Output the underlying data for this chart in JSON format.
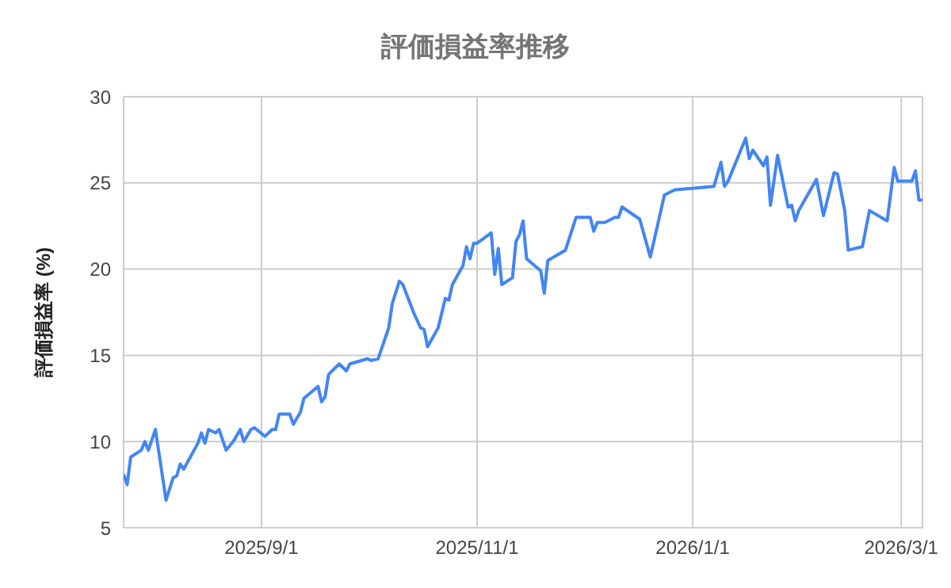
{
  "chart_data": {
    "type": "line",
    "title": "評価損益率推移",
    "ylabel": "評価損益率 (%)",
    "x": [
      "2025-07-24",
      "2025-07-25",
      "2025-07-26",
      "2025-07-29",
      "2025-07-30",
      "2025-07-31",
      "2025-08-02",
      "2025-08-05",
      "2025-08-07",
      "2025-08-08",
      "2025-08-09",
      "2025-08-10",
      "2025-08-14",
      "2025-08-15",
      "2025-08-16",
      "2025-08-17",
      "2025-08-19",
      "2025-08-20",
      "2025-08-22",
      "2025-08-24",
      "2025-08-26",
      "2025-08-27",
      "2025-08-29",
      "2025-08-30",
      "2025-09-02",
      "2025-09-04",
      "2025-09-05",
      "2025-09-06",
      "2025-09-09",
      "2025-09-10",
      "2025-09-12",
      "2025-09-13",
      "2025-09-17",
      "2025-09-18",
      "2025-09-19",
      "2025-09-20",
      "2025-09-23",
      "2025-09-25",
      "2025-09-26",
      "2025-10-01",
      "2025-10-02",
      "2025-10-04",
      "2025-10-07",
      "2025-10-08",
      "2025-10-10",
      "2025-10-11",
      "2025-10-14",
      "2025-10-16",
      "2025-10-17",
      "2025-10-18",
      "2025-10-21",
      "2025-10-23",
      "2025-10-24",
      "2025-10-25",
      "2025-10-28",
      "2025-10-29",
      "2025-10-30",
      "2025-10-31",
      "2025-11-01",
      "2025-11-05",
      "2025-11-06",
      "2025-11-07",
      "2025-11-08",
      "2025-11-11",
      "2025-11-12",
      "2025-11-13",
      "2025-11-14",
      "2025-11-15",
      "2025-11-19",
      "2025-11-20",
      "2025-11-21",
      "2025-11-26",
      "2025-11-29",
      "2025-12-03",
      "2025-12-04",
      "2025-12-05",
      "2025-12-07",
      "2025-12-10",
      "2025-12-11",
      "2025-12-12",
      "2025-12-17",
      "2025-12-20",
      "2025-12-24",
      "2025-12-27",
      "2026-01-02",
      "2026-01-07",
      "2026-01-09",
      "2026-01-10",
      "2026-01-11",
      "2026-01-16",
      "2026-01-17",
      "2026-01-18",
      "2026-01-21",
      "2026-01-22",
      "2026-01-23",
      "2026-01-25",
      "2026-01-28",
      "2026-01-29",
      "2026-01-30",
      "2026-01-31",
      "2026-02-05",
      "2026-02-07",
      "2026-02-10",
      "2026-02-11",
      "2026-02-13",
      "2026-02-14",
      "2026-02-18",
      "2026-02-20",
      "2026-02-25",
      "2026-02-27",
      "2026-02-28",
      "2026-03-04",
      "2026-03-05",
      "2026-03-06",
      "2026-03-07"
    ],
    "series": [
      {
        "color": "#4285f4",
        "values": [
          8.1,
          7.5,
          9.1,
          9.5,
          10.0,
          9.5,
          10.7,
          6.6,
          7.9,
          8.0,
          8.7,
          8.4,
          9.9,
          10.5,
          9.9,
          10.7,
          10.5,
          10.7,
          9.5,
          10.0,
          10.7,
          10.0,
          10.7,
          10.8,
          10.3,
          10.7,
          10.7,
          11.6,
          11.6,
          11.0,
          11.7,
          12.5,
          13.2,
          12.3,
          12.6,
          13.9,
          14.5,
          14.1,
          14.5,
          14.8,
          14.7,
          14.8,
          16.6,
          18.0,
          19.3,
          19.1,
          17.5,
          16.6,
          16.5,
          15.5,
          16.6,
          18.3,
          18.2,
          19.1,
          20.2,
          21.3,
          20.6,
          21.5,
          21.5,
          22.1,
          19.7,
          21.2,
          19.1,
          19.5,
          21.6,
          22.0,
          22.8,
          20.6,
          19.9,
          18.6,
          20.5,
          21.1,
          23.0,
          23.0,
          22.2,
          22.7,
          22.7,
          23.0,
          23.0,
          23.6,
          22.9,
          20.7,
          24.3,
          24.6,
          24.7,
          24.8,
          26.2,
          24.8,
          25.1,
          27.6,
          26.4,
          26.9,
          26.0,
          26.5,
          23.7,
          26.6,
          23.6,
          23.7,
          22.8,
          23.4,
          25.2,
          23.1,
          25.6,
          25.5,
          23.4,
          21.1,
          21.3,
          23.4,
          22.8,
          25.9,
          25.1,
          25.1,
          25.7,
          24.0,
          24.0
        ]
      }
    ],
    "xlim": [
      "2025-07-24",
      "2026-03-07"
    ],
    "xticks": [
      {
        "value": "2025-09-01",
        "label": "2025/9/1"
      },
      {
        "value": "2025-11-01",
        "label": "2025/11/1"
      },
      {
        "value": "2026-01-01",
        "label": "2026/1/1"
      },
      {
        "value": "2026-03-01",
        "label": "2026/3/1"
      }
    ],
    "ylim": [
      5,
      30
    ],
    "yticks": [
      5,
      10,
      15,
      20,
      25,
      30
    ],
    "grid": true,
    "legend": false,
    "marker": "none",
    "line_style": "solid"
  }
}
